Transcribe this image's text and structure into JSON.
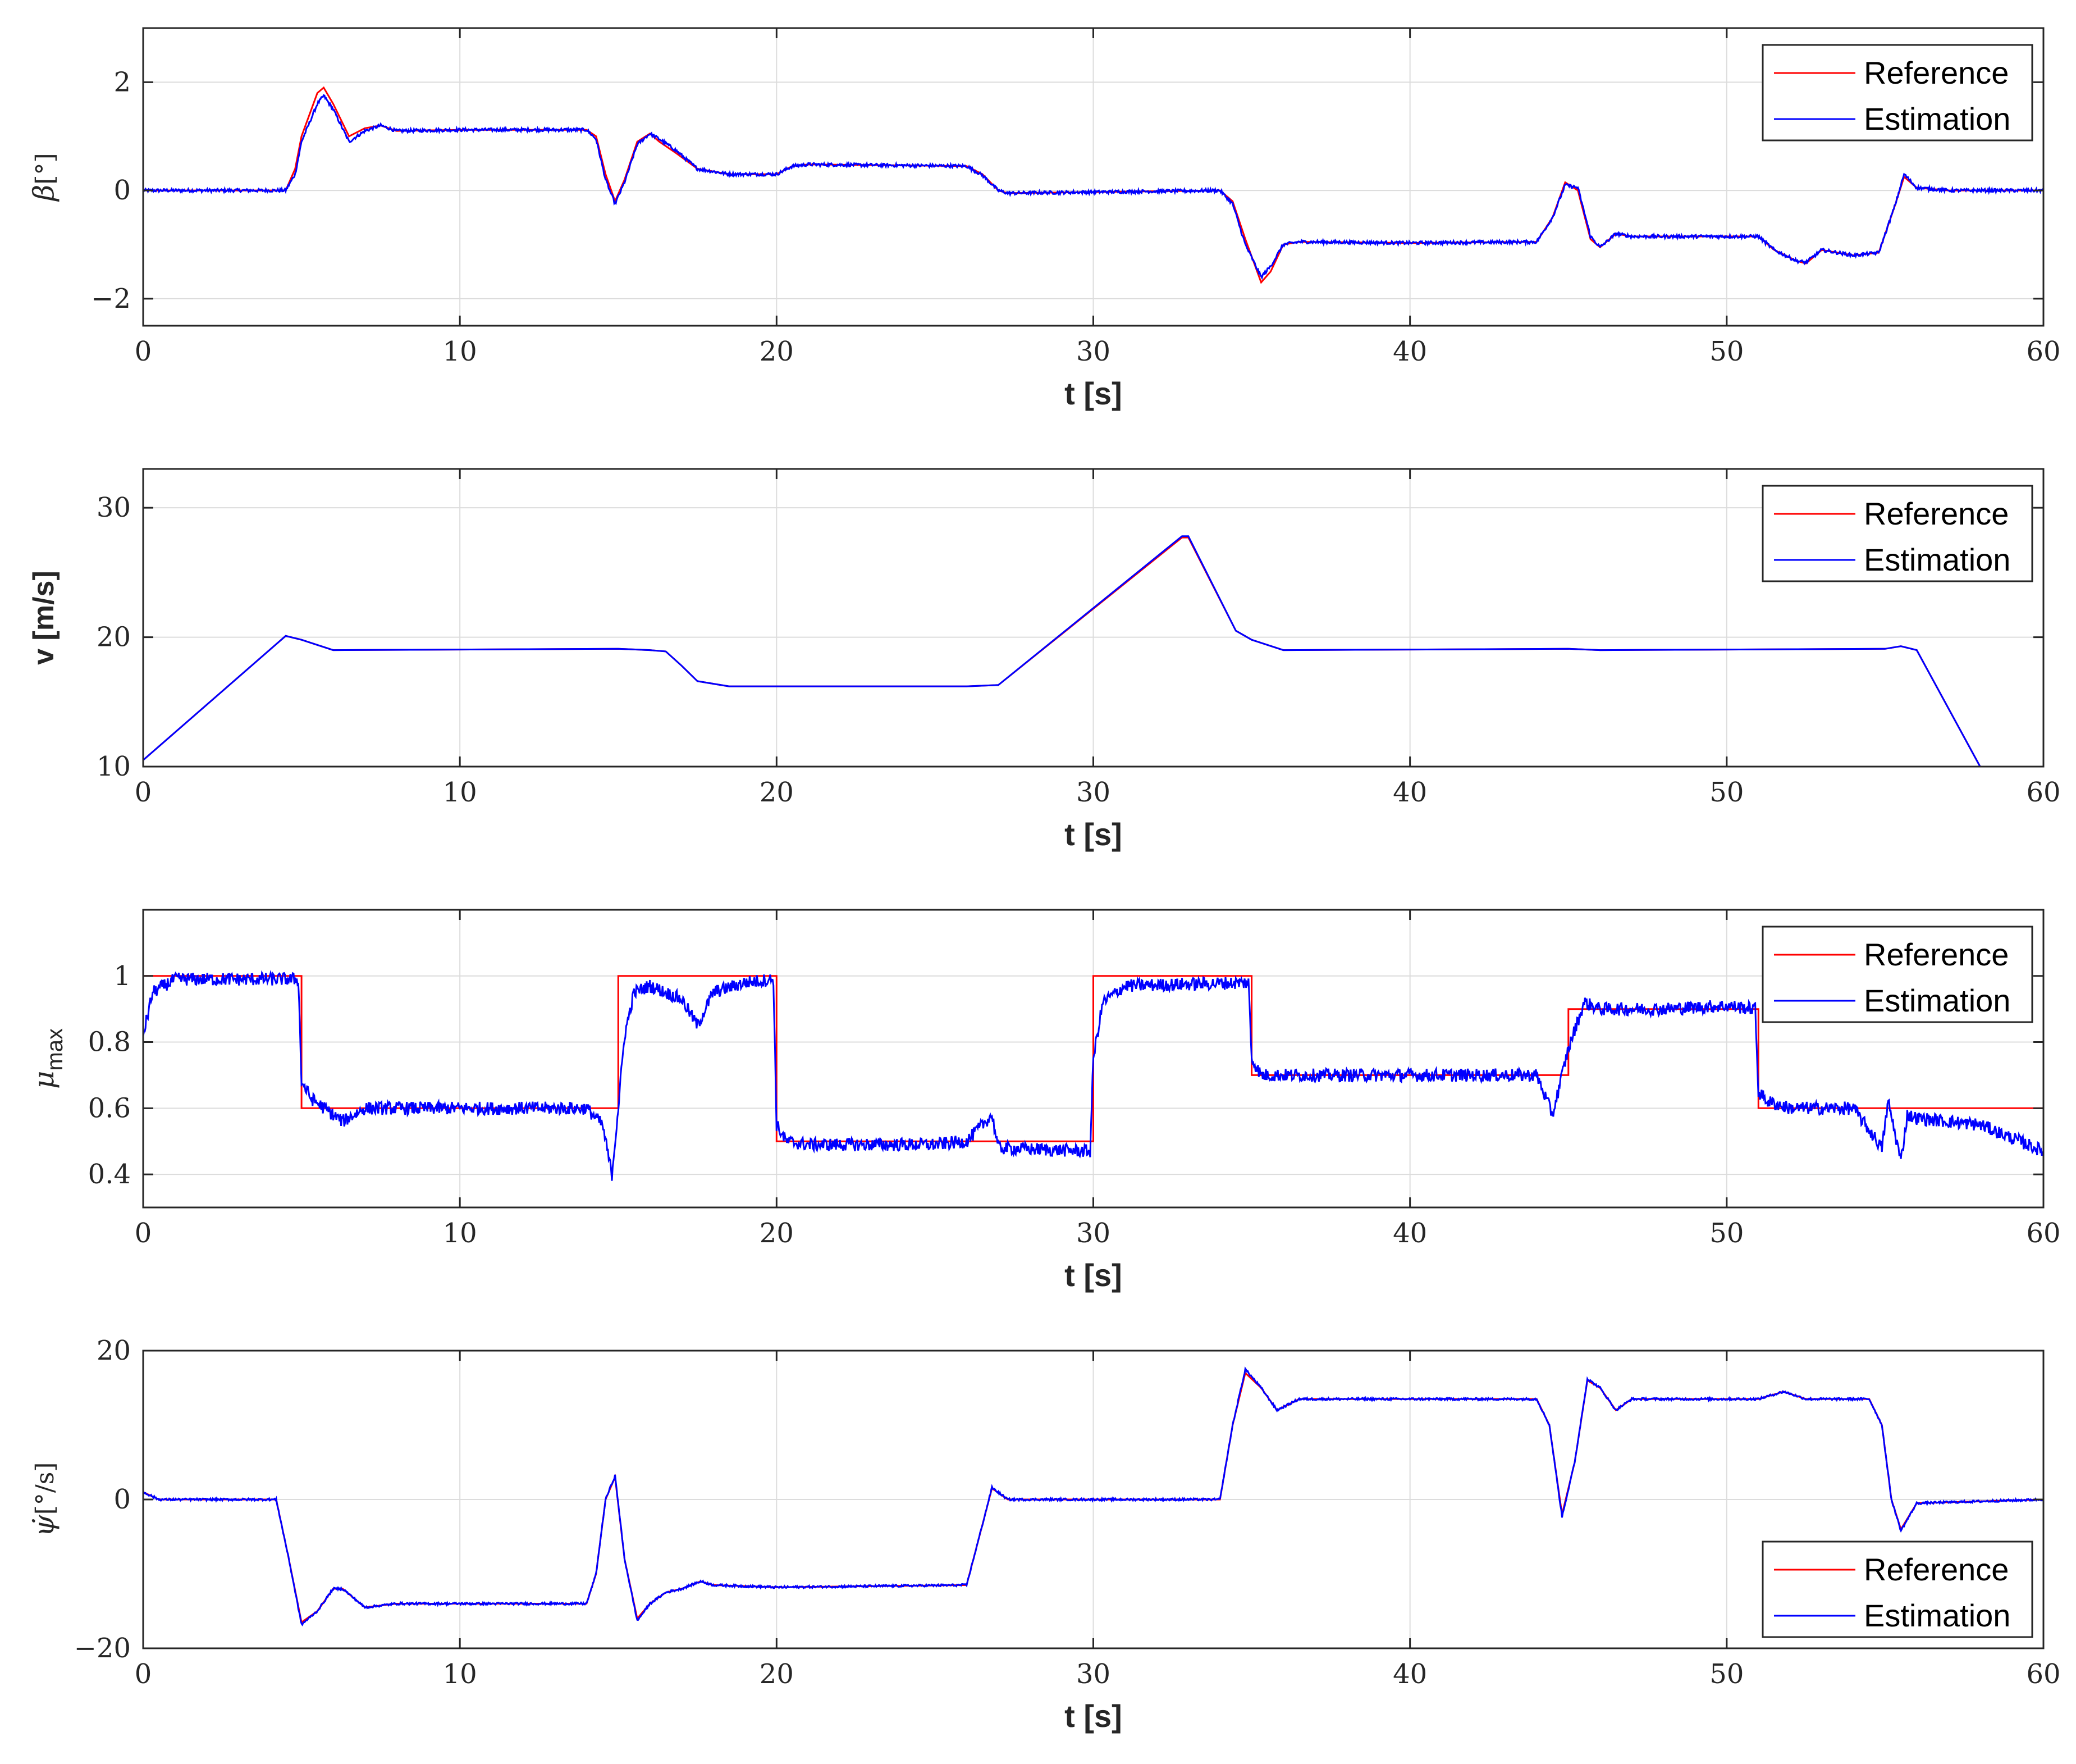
{
  "colors": {
    "reference": "#ff0000",
    "estimation": "#0000ff",
    "grid": "#dcdcdc",
    "axis": "#262626"
  },
  "chart_data": [
    {
      "type": "line",
      "ylabel_main": "β",
      "ylabel_unit": "[°]",
      "xlabel": "t [s]",
      "xlim": [
        0,
        60
      ],
      "ylim": [
        -2.5,
        3
      ],
      "xticks": [
        0,
        10,
        20,
        30,
        40,
        50,
        60
      ],
      "yticks": [
        -2,
        0,
        2
      ],
      "ytick_labels": [
        "−2",
        "0",
        "2"
      ],
      "legend": {
        "position": "top-right",
        "entries": [
          "Reference",
          "Estimation"
        ]
      },
      "grid": true,
      "series": [
        {
          "name": "Reference",
          "x": [
            0,
            4.5,
            4.8,
            5.0,
            5.5,
            5.7,
            6.0,
            6.5,
            7.0,
            7.5,
            8.0,
            10.0,
            12.0,
            14.0,
            14.3,
            14.6,
            14.9,
            15.2,
            15.6,
            16.0,
            16.3,
            16.8,
            17.5,
            18.5,
            19.0,
            20.0,
            20.5,
            21.0,
            26.0,
            26.5,
            27.0,
            27.3,
            34.0,
            34.4,
            34.8,
            35.3,
            35.6,
            36.0,
            36.5,
            40.0,
            44.0,
            44.5,
            44.9,
            45.3,
            45.7,
            46.0,
            46.5,
            47.0,
            50.0,
            51.0,
            51.5,
            52.2,
            52.5,
            53.0,
            54.0,
            54.8,
            55.3,
            55.6,
            56.0,
            57.0,
            60.0
          ],
          "y": [
            0,
            0,
            0.4,
            1.0,
            1.8,
            1.9,
            1.6,
            1.0,
            1.15,
            1.2,
            1.1,
            1.12,
            1.12,
            1.12,
            1.0,
            0.3,
            -0.2,
            0.2,
            0.9,
            1.05,
            0.9,
            0.7,
            0.4,
            0.3,
            0.3,
            0.3,
            0.45,
            0.48,
            0.45,
            0.3,
            0,
            -0.05,
            0,
            -0.2,
            -0.9,
            -1.7,
            -1.5,
            -1.0,
            -0.95,
            -0.97,
            -0.95,
            -0.5,
            0.15,
            0.0,
            -0.9,
            -1.05,
            -0.8,
            -0.85,
            -0.85,
            -0.85,
            -1.1,
            -1.3,
            -1.35,
            -1.1,
            -1.2,
            -1.15,
            -0.3,
            0.25,
            0.05,
            0,
            0
          ]
        },
        {
          "name": "Estimation",
          "x": [
            0,
            4.5,
            4.8,
            5.0,
            5.5,
            5.7,
            6.0,
            6.5,
            7.0,
            7.5,
            8.0,
            10.0,
            12.0,
            14.0,
            14.3,
            14.6,
            14.9,
            15.2,
            15.6,
            16.0,
            16.3,
            16.8,
            17.5,
            18.5,
            19.0,
            20.0,
            20.5,
            21.0,
            26.0,
            26.5,
            27.0,
            27.3,
            34.0,
            34.4,
            34.8,
            35.3,
            35.6,
            36.0,
            36.5,
            40.0,
            44.0,
            44.5,
            44.9,
            45.3,
            45.7,
            46.0,
            46.5,
            47.0,
            50.0,
            51.0,
            51.5,
            52.2,
            52.5,
            53.0,
            54.0,
            54.8,
            55.3,
            55.6,
            56.0,
            57.0,
            60.0
          ],
          "y": [
            0,
            0,
            0.3,
            0.9,
            1.6,
            1.75,
            1.5,
            0.9,
            1.1,
            1.2,
            1.1,
            1.12,
            1.12,
            1.12,
            0.95,
            0.2,
            -0.25,
            0.15,
            0.85,
            1.05,
            0.95,
            0.75,
            0.4,
            0.3,
            0.3,
            0.3,
            0.45,
            0.48,
            0.45,
            0.28,
            0,
            -0.05,
            0,
            -0.25,
            -1.0,
            -1.6,
            -1.4,
            -1.0,
            -0.95,
            -0.97,
            -0.95,
            -0.5,
            0.1,
            0.05,
            -0.85,
            -1.05,
            -0.8,
            -0.85,
            -0.85,
            -0.85,
            -1.1,
            -1.3,
            -1.33,
            -1.1,
            -1.2,
            -1.15,
            -0.3,
            0.3,
            0.05,
            0,
            0
          ]
        }
      ]
    },
    {
      "type": "line",
      "ylabel_main": "v [m/s]",
      "xlabel": "t [s]",
      "xlim": [
        0,
        60
      ],
      "ylim": [
        10,
        33
      ],
      "xticks": [
        0,
        10,
        20,
        30,
        40,
        50,
        60
      ],
      "yticks": [
        10,
        20,
        30
      ],
      "ytick_labels": [
        "10",
        "20",
        "30"
      ],
      "legend": {
        "position": "top-right",
        "entries": [
          "Reference",
          "Estimation"
        ]
      },
      "grid": true,
      "series": [
        {
          "name": "Reference",
          "x": [
            0,
            4.5,
            5.0,
            6.0,
            15.0,
            16.0,
            16.5,
            17.0,
            17.5,
            18.5,
            26.0,
            27.0,
            32.8,
            33.0,
            34.5,
            35.0,
            36.0,
            45.0,
            46.0,
            55.0,
            55.5,
            56.0,
            58.0
          ],
          "y": [
            10.5,
            20.1,
            19.8,
            19.0,
            19.1,
            19.0,
            18.9,
            17.8,
            16.6,
            16.2,
            16.2,
            16.3,
            27.7,
            27.7,
            20.5,
            19.8,
            19.0,
            19.1,
            19.0,
            19.1,
            19.3,
            19.0,
            10.0
          ]
        },
        {
          "name": "Estimation",
          "x": [
            0,
            4.5,
            5.0,
            6.0,
            15.0,
            16.0,
            16.5,
            17.0,
            17.5,
            18.5,
            26.0,
            27.0,
            32.8,
            33.0,
            34.5,
            35.0,
            36.0,
            45.0,
            46.0,
            55.0,
            55.5,
            56.0,
            58.0
          ],
          "y": [
            10.5,
            20.1,
            19.8,
            19.0,
            19.1,
            19.0,
            18.9,
            17.8,
            16.6,
            16.2,
            16.2,
            16.3,
            27.8,
            27.8,
            20.5,
            19.8,
            19.0,
            19.1,
            19.0,
            19.1,
            19.3,
            19.0,
            10.0
          ]
        }
      ]
    },
    {
      "type": "line",
      "ylabel_main": "μ",
      "ylabel_sub": "max",
      "xlabel": "t [s]",
      "xlim": [
        0,
        60
      ],
      "ylim": [
        0.3,
        1.2
      ],
      "xticks": [
        0,
        10,
        20,
        30,
        40,
        50,
        60
      ],
      "yticks": [
        0.4,
        0.6,
        0.8,
        1.0
      ],
      "ytick_labels": [
        "0.4",
        "0.6",
        "0.8",
        "1"
      ],
      "legend": {
        "position": "top-right",
        "entries": [
          "Reference",
          "Estimation"
        ]
      },
      "grid": true,
      "series": [
        {
          "name": "Reference",
          "x": [
            0,
            5,
            5,
            15,
            15,
            20,
            20,
            30,
            30,
            35,
            35,
            45,
            45,
            51,
            51,
            60
          ],
          "y": [
            1,
            1,
            0.6,
            0.6,
            1,
            1,
            0.5,
            0.5,
            1,
            1,
            0.7,
            0.7,
            0.9,
            0.9,
            0.6,
            0.6
          ]
        },
        {
          "name": "Estimation",
          "x": [
            0,
            0.3,
            1.0,
            4.9,
            5.0,
            5.3,
            6.0,
            6.3,
            7.0,
            10.0,
            14.0,
            14.5,
            14.8,
            15.0,
            15.2,
            15.5,
            16.0,
            17.0,
            17.5,
            18.0,
            19.0,
            19.9,
            20.0,
            20.3,
            21.0,
            25.0,
            26.0,
            26.8,
            27.0,
            29.9,
            30.0,
            30.3,
            31.0,
            34.9,
            35.0,
            35.3,
            36.0,
            40.0,
            44.0,
            44.5,
            45.0,
            45.5,
            46.0,
            48.0,
            50.0,
            50.9,
            51.0,
            51.3,
            52.0,
            54.0,
            54.9,
            55.1,
            55.5,
            55.7,
            56.0,
            58.0,
            60.0
          ],
          "y": [
            0.82,
            0.95,
            0.99,
            0.99,
            0.68,
            0.63,
            0.58,
            0.56,
            0.6,
            0.6,
            0.6,
            0.55,
            0.4,
            0.6,
            0.82,
            0.95,
            0.97,
            0.93,
            0.85,
            0.95,
            0.98,
            0.99,
            0.55,
            0.5,
            0.49,
            0.49,
            0.5,
            0.58,
            0.48,
            0.47,
            0.75,
            0.92,
            0.97,
            0.98,
            0.75,
            0.7,
            0.7,
            0.7,
            0.7,
            0.58,
            0.78,
            0.92,
            0.9,
            0.9,
            0.91,
            0.9,
            0.65,
            0.62,
            0.6,
            0.6,
            0.48,
            0.62,
            0.44,
            0.58,
            0.57,
            0.55,
            0.47
          ]
        }
      ]
    },
    {
      "type": "line",
      "ylabel_main": "ψ̇",
      "ylabel_unit": "[°/s]",
      "xlabel": "t [s]",
      "xlim": [
        0,
        60
      ],
      "ylim": [
        -20,
        20
      ],
      "xticks": [
        0,
        10,
        20,
        30,
        40,
        50,
        60
      ],
      "yticks": [
        -20,
        0,
        20
      ],
      "ytick_labels": [
        "−20",
        "0",
        "20"
      ],
      "legend": {
        "position": "bottom-right",
        "entries": [
          "Reference",
          "Estimation"
        ]
      },
      "grid": true,
      "series": [
        {
          "name": "Reference",
          "x": [
            0,
            0.5,
            4.2,
            4.6,
            5.0,
            5.5,
            6.0,
            6.3,
            7.0,
            8.0,
            14.0,
            14.3,
            14.6,
            14.9,
            15.2,
            15.6,
            16.0,
            16.5,
            17.0,
            17.6,
            18.0,
            20.0,
            26.0,
            26.4,
            26.8,
            27.3,
            28.0,
            34.0,
            34.4,
            34.8,
            35.3,
            35.8,
            36.5,
            40.0,
            44.0,
            44.4,
            44.8,
            45.2,
            45.6,
            46.0,
            46.5,
            47.0,
            51.0,
            51.8,
            52.5,
            54.5,
            54.9,
            55.2,
            55.5,
            56.0,
            60.0
          ],
          "y": [
            1,
            0,
            0,
            -8,
            -16.5,
            -15,
            -12,
            -12,
            -14.5,
            -14,
            -14,
            -10,
            0,
            3,
            -8,
            -16,
            -14,
            -12.5,
            -12,
            -11,
            -11.5,
            -11.8,
            -11.5,
            -5,
            1.5,
            0,
            0,
            0,
            10,
            17,
            15,
            12,
            13.5,
            13.5,
            13.5,
            10,
            -2,
            5,
            16,
            15,
            12,
            13.5,
            13.5,
            14.5,
            13.5,
            13.5,
            10,
            0,
            -4,
            -0.5,
            0
          ]
        },
        {
          "name": "Estimation",
          "x": [
            0,
            0.5,
            4.2,
            4.6,
            5.0,
            5.5,
            6.0,
            6.3,
            7.0,
            8.0,
            14.0,
            14.3,
            14.6,
            14.9,
            15.2,
            15.6,
            16.0,
            16.5,
            17.0,
            17.6,
            18.0,
            20.0,
            26.0,
            26.4,
            26.8,
            27.3,
            28.0,
            34.0,
            34.4,
            34.8,
            35.3,
            35.8,
            36.5,
            40.0,
            44.0,
            44.4,
            44.8,
            45.2,
            45.6,
            46.0,
            46.5,
            47.0,
            51.0,
            51.8,
            52.5,
            54.5,
            54.9,
            55.2,
            55.5,
            56.0,
            60.0
          ],
          "y": [
            1,
            0,
            0,
            -8,
            -16.8,
            -15,
            -12,
            -12,
            -14.5,
            -14,
            -14,
            -10,
            0,
            3.2,
            -8,
            -16.3,
            -14,
            -12.5,
            -12,
            -11,
            -11.5,
            -11.8,
            -11.5,
            -5,
            1.6,
            0,
            0,
            0,
            10,
            17.5,
            15,
            12,
            13.5,
            13.5,
            13.5,
            10,
            -2.3,
            5,
            16.2,
            15,
            12,
            13.5,
            13.5,
            14.5,
            13.5,
            13.5,
            10,
            0,
            -4.2,
            -0.5,
            0
          ]
        }
      ]
    }
  ]
}
